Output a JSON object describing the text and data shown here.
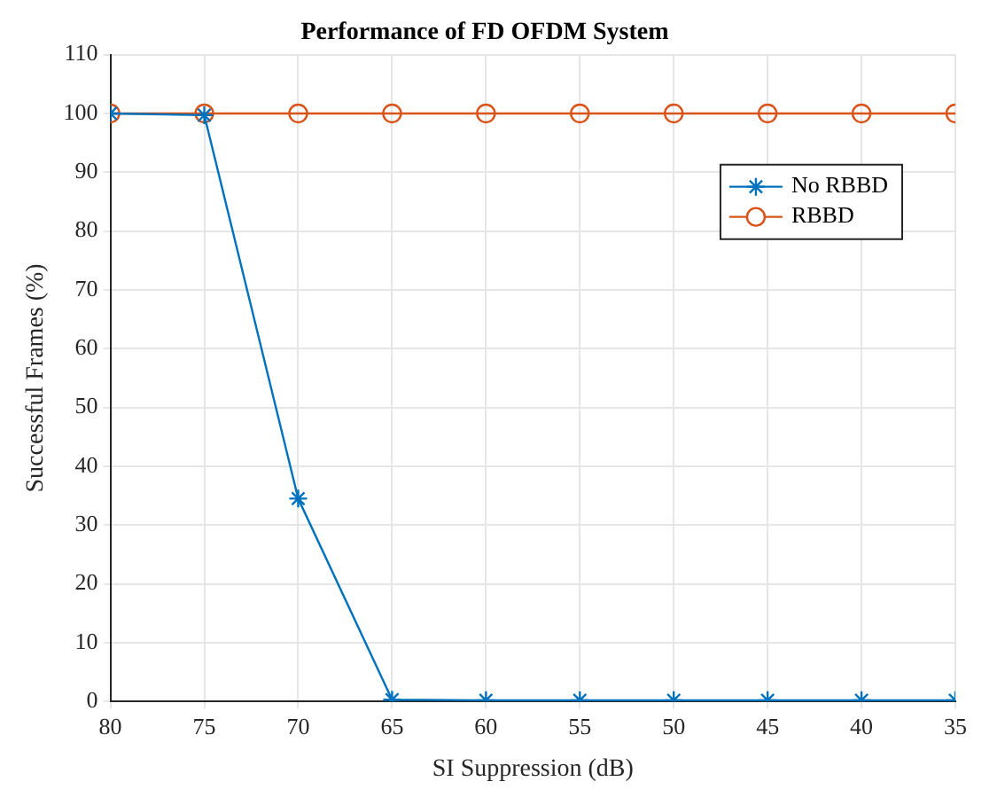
{
  "chart_data": {
    "type": "line",
    "title": "Performance of FD OFDM System",
    "xlabel": "SI Suppression (dB)",
    "ylabel": "Successful Frames (%)",
    "x": [
      80,
      75,
      70,
      65,
      60,
      55,
      50,
      45,
      40,
      35
    ],
    "series": [
      {
        "name": "No RBBD",
        "color": "#0072bd",
        "marker": "cross",
        "values": [
          100,
          99.7,
          34.5,
          0.3,
          0.2,
          0.2,
          0.2,
          0.2,
          0.2,
          0.2
        ]
      },
      {
        "name": "RBBD",
        "color": "#d95319",
        "marker": "circle",
        "values": [
          100,
          100,
          100,
          100,
          100,
          100,
          100,
          100,
          100,
          100
        ]
      }
    ],
    "xlim": [
      80,
      35
    ],
    "xticks": [
      80,
      75,
      70,
      65,
      60,
      55,
      50,
      45,
      40,
      35
    ],
    "ylim": [
      0,
      110
    ],
    "yticks": [
      0,
      10,
      20,
      30,
      40,
      50,
      60,
      70,
      80,
      90,
      100,
      110
    ],
    "grid": true,
    "legend": "top right",
    "line_style": "solid"
  }
}
